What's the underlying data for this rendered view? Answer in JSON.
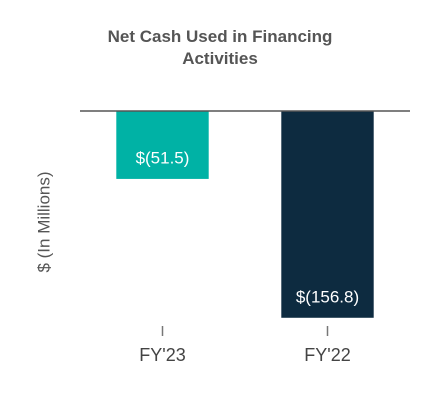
{
  "chart_data": {
    "type": "bar",
    "title": "Net Cash Used in Financing Activities",
    "y_label": "$ (In Millions)",
    "categories": [
      "FY'23",
      "FY'22"
    ],
    "values": [
      -51.5,
      -156.8
    ],
    "value_labels": [
      "$(51.5)",
      "$(156.8)"
    ],
    "colors": [
      "#00b2a5",
      "#0d2b40"
    ],
    "ylim": [
      -160,
      0
    ]
  }
}
